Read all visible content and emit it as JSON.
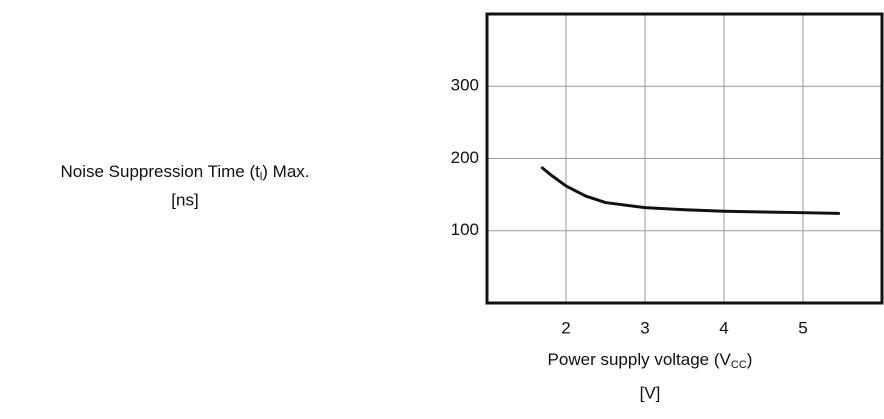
{
  "chart_data": {
    "type": "line",
    "ylabel": {
      "before": "Noise Suppression Time (t",
      "sub": "l",
      "after": ") Max.",
      "unit": "[ns]"
    },
    "xlabel": {
      "before": "Power supply voltage (V",
      "sub": "CC",
      "after": ")",
      "unit": "[V]"
    },
    "x": [
      1.7,
      1.8,
      2,
      2.25,
      2.5,
      3,
      3.5,
      4,
      4.5,
      5,
      5.45
    ],
    "series": [
      {
        "color": "#111111",
        "values": [
          187,
          178,
          162,
          148,
          139,
          132,
          129,
          127,
          126,
          125,
          124
        ]
      }
    ],
    "xlim": [
      1,
      6
    ],
    "xticks": [
      2,
      3,
      4,
      5
    ],
    "ylim": [
      0,
      400
    ],
    "yticks": [
      100,
      200,
      300
    ],
    "grid": true
  }
}
